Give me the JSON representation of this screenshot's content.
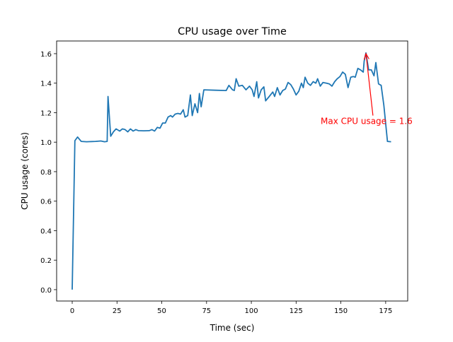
{
  "chart_data": {
    "type": "line",
    "title": "CPU usage over Time",
    "xlabel": "Time (sec)",
    "ylabel": "CPU usage (cores)",
    "xlim": [
      -8.7,
      187.3
    ],
    "ylim": [
      -0.077,
      1.686
    ],
    "xticks": [
      0,
      25,
      50,
      75,
      100,
      125,
      150,
      175
    ],
    "yticks": [
      0.0,
      0.2,
      0.4,
      0.6,
      0.8,
      1.0,
      1.2,
      1.4,
      1.6
    ],
    "xtick_labels": [
      "0",
      "25",
      "50",
      "75",
      "100",
      "125",
      "150",
      "175"
    ],
    "ytick_labels": [
      "0.0",
      "0.2",
      "0.4",
      "0.6",
      "0.8",
      "1.0",
      "1.2",
      "1.4",
      "1.6"
    ],
    "grid": false,
    "series": [
      {
        "name": "CPU usage",
        "color": "#1f77b4",
        "x": [
          0,
          1.5,
          3,
          5,
          8,
          13,
          16,
          18,
          19.5,
          20,
          21.5,
          23,
          24.5,
          26.5,
          28,
          29.5,
          31,
          32.5,
          34,
          35.5,
          37,
          40,
          43,
          44.5,
          46,
          47.5,
          49,
          50.5,
          52,
          53.5,
          55,
          56,
          57.5,
          59,
          60.5,
          62,
          63,
          64.5,
          66,
          67,
          68.5,
          70,
          71,
          72,
          73.5,
          80,
          86,
          87.5,
          89.5,
          90.5,
          91.5,
          93,
          95,
          97,
          99,
          100.5,
          101.5,
          103,
          104,
          105.5,
          107,
          108,
          110,
          112,
          113,
          114.5,
          116,
          117.5,
          119,
          120.5,
          122,
          123.5,
          125,
          126.5,
          128,
          129,
          130,
          131.5,
          133,
          134.5,
          136,
          137,
          138.5,
          140,
          142,
          143.5,
          145,
          146.5,
          148,
          149.5,
          151,
          152.5,
          154,
          155.5,
          157,
          158,
          159.5,
          161,
          162.5,
          163,
          164,
          165.5,
          167,
          168.5,
          169.5,
          171,
          172.5,
          174,
          176,
          178
        ],
        "y": [
          0,
          1.01,
          1.035,
          1.005,
          1.003,
          1.005,
          1.008,
          1.003,
          1.005,
          1.31,
          1.04,
          1.07,
          1.09,
          1.075,
          1.09,
          1.085,
          1.07,
          1.09,
          1.075,
          1.085,
          1.078,
          1.077,
          1.078,
          1.085,
          1.075,
          1.1,
          1.095,
          1.13,
          1.13,
          1.17,
          1.18,
          1.17,
          1.19,
          1.195,
          1.19,
          1.22,
          1.17,
          1.18,
          1.32,
          1.18,
          1.26,
          1.2,
          1.33,
          1.24,
          1.355,
          1.352,
          1.35,
          1.385,
          1.355,
          1.35,
          1.43,
          1.38,
          1.385,
          1.355,
          1.38,
          1.355,
          1.31,
          1.41,
          1.3,
          1.355,
          1.375,
          1.28,
          1.31,
          1.34,
          1.31,
          1.37,
          1.32,
          1.35,
          1.36,
          1.405,
          1.39,
          1.36,
          1.32,
          1.345,
          1.4,
          1.37,
          1.44,
          1.4,
          1.385,
          1.41,
          1.4,
          1.43,
          1.38,
          1.405,
          1.4,
          1.395,
          1.38,
          1.41,
          1.43,
          1.445,
          1.475,
          1.46,
          1.37,
          1.44,
          1.445,
          1.44,
          1.5,
          1.49,
          1.475,
          1.55,
          1.605,
          1.49,
          1.49,
          1.45,
          1.54,
          1.395,
          1.385,
          1.25,
          1.005,
          1.003
        ]
      }
    ],
    "annotations": [
      {
        "text": "Max CPU usage = 1.6",
        "xy": [
          164,
          1.6
        ],
        "xytext": [
          138.7,
          1.1
        ],
        "arrow_tail": [
          167.9,
          1.18
        ],
        "color": "#ff0000"
      }
    ]
  }
}
